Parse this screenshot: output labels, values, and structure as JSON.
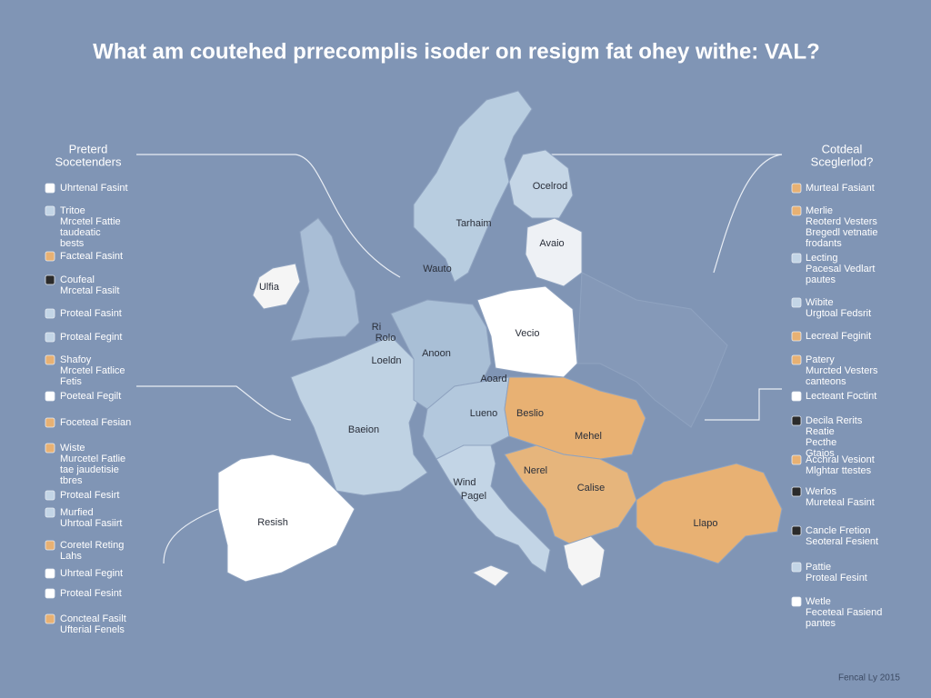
{
  "header": {
    "title": "What am coutehed prrecomplis isoder on resigm fat ohey withe: VAL?"
  },
  "left_legend": {
    "heading": [
      "Preterd",
      "Socetenders"
    ],
    "items": [
      {
        "color": "#ffffff",
        "lines": [
          "Uhrtenal Fasint"
        ]
      },
      {
        "color": "#c3d5e6",
        "lines": [
          "Tritoe",
          "Mrcetel Fattie",
          "taudeatic",
          "bests"
        ]
      },
      {
        "color": "#e8b173",
        "lines": [
          "Facteal Fasint"
        ]
      },
      {
        "color": "#2b2b2b",
        "lines": [
          "Coufeal",
          "Mrcetal Fasilt"
        ]
      },
      {
        "color": "#c3d5e6",
        "lines": [
          "Proteal Fasint"
        ]
      },
      {
        "color": "#c3d5e6",
        "lines": [
          "Proteal Fegint"
        ]
      },
      {
        "color": "#e8b173",
        "lines": [
          "Shafoy",
          "Mrcetel Fatlice",
          "Fetis"
        ]
      },
      {
        "color": "#ffffff",
        "lines": [
          "Poeteal Fegilt"
        ]
      },
      {
        "color": "#e8b173",
        "lines": [
          "Foceteal Fesian"
        ]
      },
      {
        "color": "#e8b173",
        "lines": [
          "Wiste",
          "Murcetel Fatlie",
          "tae jaudetisie",
          "tbres"
        ]
      },
      {
        "color": "#c3d5e6",
        "lines": [
          "Proteal Fesirt"
        ]
      },
      {
        "color": "#c3d5e6",
        "lines": [
          "Murfied",
          "Uhrtoal Fasiirt"
        ]
      },
      {
        "color": "#e8b173",
        "lines": [
          "Coretel Reting",
          "Lahs"
        ]
      },
      {
        "color": "#ffffff",
        "lines": [
          "Uhrteal Fegint"
        ]
      },
      {
        "color": "#ffffff",
        "lines": [
          "Proteal Fesint"
        ]
      },
      {
        "color": "#e8b173",
        "lines": [
          "Concteal Fasilt",
          "Ufterial Fenels"
        ]
      }
    ]
  },
  "right_legend": {
    "heading": [
      "Cotdeal",
      "Sceglerlod?"
    ],
    "items": [
      {
        "color": "#e8b173",
        "lines": [
          "Murteal Fasiant"
        ]
      },
      {
        "color": "#e8b173",
        "lines": [
          "Merlie",
          "Reoterd Vesters",
          "Bregedl vetnatie",
          "frodants"
        ]
      },
      {
        "color": "#c3d5e6",
        "lines": [
          "Lecting",
          "Pacesal Vedlart",
          "pautes"
        ]
      },
      {
        "color": "#c3d5e6",
        "lines": [
          "Wibite",
          "Urgtoal Fedsrit"
        ]
      },
      {
        "color": "#e8b173",
        "lines": [
          "Lecreal Feginit"
        ]
      },
      {
        "color": "#e8b173",
        "lines": [
          "Patery",
          "Murcted Vesters",
          "canteons"
        ]
      },
      {
        "color": "#ffffff",
        "lines": [
          "Lecteant Foctint"
        ]
      },
      {
        "color": "#2b2b2b",
        "lines": [
          "Decila Rerits",
          "Reatie",
          "Pecthe",
          "Gtaios"
        ]
      },
      {
        "color": "#e8b173",
        "lines": [
          "Acchral Vesiont",
          "Mlghtar ttestes"
        ]
      },
      {
        "color": "#2b2b2b",
        "lines": [
          "Werlos",
          "Mureteal Fasint"
        ]
      },
      {
        "color": "#2b2b2b",
        "lines": [
          "Cancle Fretion",
          "Seoteral Fesient"
        ]
      },
      {
        "color": "#c3d5e6",
        "lines": [
          "Pattie",
          "Proteal Fesint"
        ]
      },
      {
        "color": "#ffffff",
        "lines": [
          "Wetle",
          "Feceteal Fasiend",
          "pantes"
        ]
      }
    ]
  },
  "map": {
    "labels": [
      "Ocelrod",
      "Tarhaim",
      "Avaio",
      "Wauto",
      "Ulfia",
      "Ri",
      "Rolo",
      "Vecio",
      "Anoon",
      "Loeldn",
      "Aoard",
      "Lueno",
      "Beslio",
      "Baeion",
      "Mehel",
      "Nerel",
      "Calise",
      "Wind",
      "Pagel",
      "Resish",
      "Llapo"
    ]
  },
  "footer": {
    "text": "Fencal Ly 2015"
  }
}
